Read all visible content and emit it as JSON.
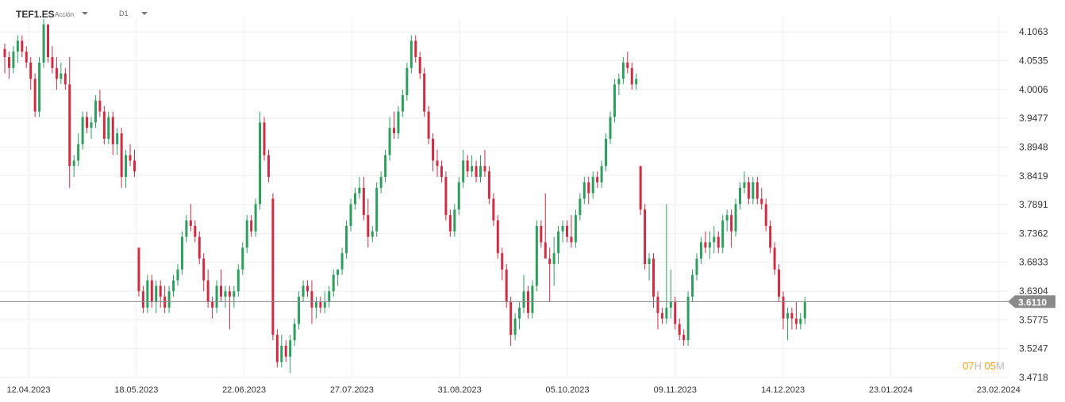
{
  "header": {
    "symbol": "TEF1.ES",
    "asset_type": "Acción",
    "timeframe": "D1"
  },
  "countdown": {
    "hours": "07",
    "hours_unit": "H",
    "minutes": "05",
    "minutes_unit": "M"
  },
  "colors": {
    "up": "#2e9e5f",
    "down": "#cf2d43",
    "grid": "#eeeeee",
    "price_line": "#8a8a8a",
    "price_label_bg": "#8a8a8a"
  },
  "chart_data": {
    "type": "candlestick",
    "symbol": "TEF1.ES",
    "timeframe": "D1",
    "ylim": [
      3.4718,
      4.1328
    ],
    "y_ticks": [
      "4.1063",
      "4.0535",
      "4.0006",
      "3.9477",
      "3.8948",
      "3.8419",
      "3.7891",
      "3.7362",
      "3.6833",
      "3.6304",
      "3.5775",
      "3.5247",
      "3.4718"
    ],
    "x_ticks": [
      "12.04.2023",
      "18.05.2023",
      "22.06.2023",
      "27.07.2023",
      "31.08.2023",
      "05.10.2023",
      "09.11.2023",
      "14.12.2023",
      "23.01.2024",
      "23.02.2024"
    ],
    "last_price": 3.611,
    "last_price_label": "3.6110",
    "candles_ohlc": [
      [
        4.075,
        4.085,
        4.03,
        4.06
      ],
      [
        4.06,
        4.07,
        4.02,
        4.04
      ],
      [
        4.04,
        4.08,
        4.03,
        4.07
      ],
      [
        4.07,
        4.1,
        4.05,
        4.09
      ],
      [
        4.09,
        4.1,
        4.06,
        4.07
      ],
      [
        4.07,
        4.08,
        4.04,
        4.05
      ],
      [
        4.05,
        4.06,
        4.0,
        4.02
      ],
      [
        4.02,
        4.03,
        3.95,
        3.96
      ],
      [
        3.96,
        4.06,
        3.95,
        4.05
      ],
      [
        4.05,
        4.13,
        4.04,
        4.12
      ],
      [
        4.12,
        4.12,
        4.05,
        4.06
      ],
      [
        4.06,
        4.08,
        4.03,
        4.04
      ],
      [
        4.04,
        4.06,
        4.0,
        4.02
      ],
      [
        4.02,
        4.05,
        4.01,
        4.03
      ],
      [
        4.03,
        4.04,
        4.0,
        4.01
      ],
      [
        4.01,
        4.06,
        3.82,
        3.86
      ],
      [
        3.86,
        3.88,
        3.84,
        3.87
      ],
      [
        3.87,
        3.92,
        3.86,
        3.9
      ],
      [
        3.9,
        3.96,
        3.89,
        3.95
      ],
      [
        3.95,
        3.96,
        3.92,
        3.93
      ],
      [
        3.93,
        3.95,
        3.91,
        3.94
      ],
      [
        3.94,
        3.99,
        3.93,
        3.98
      ],
      [
        3.98,
        4.0,
        3.95,
        3.96
      ],
      [
        3.96,
        3.97,
        3.9,
        3.91
      ],
      [
        3.91,
        3.96,
        3.9,
        3.95
      ],
      [
        3.95,
        3.96,
        3.88,
        3.9
      ],
      [
        3.9,
        3.93,
        3.88,
        3.92
      ],
      [
        3.92,
        3.93,
        3.82,
        3.84
      ],
      [
        3.84,
        3.89,
        3.82,
        3.88
      ],
      [
        3.88,
        3.9,
        3.86,
        3.87
      ],
      [
        3.87,
        3.89,
        3.84,
        3.85
      ],
      [
        3.71,
        3.71,
        3.62,
        3.63
      ],
      [
        3.63,
        3.64,
        3.59,
        3.6
      ],
      [
        3.6,
        3.66,
        3.59,
        3.65
      ],
      [
        3.65,
        3.66,
        3.6,
        3.61
      ],
      [
        3.61,
        3.65,
        3.59,
        3.64
      ],
      [
        3.64,
        3.65,
        3.6,
        3.62
      ],
      [
        3.62,
        3.64,
        3.59,
        3.6
      ],
      [
        3.6,
        3.64,
        3.59,
        3.63
      ],
      [
        3.63,
        3.66,
        3.62,
        3.65
      ],
      [
        3.65,
        3.68,
        3.64,
        3.67
      ],
      [
        3.67,
        3.74,
        3.66,
        3.73
      ],
      [
        3.73,
        3.77,
        3.72,
        3.76
      ],
      [
        3.76,
        3.79,
        3.74,
        3.75
      ],
      [
        3.75,
        3.76,
        3.72,
        3.73
      ],
      [
        3.73,
        3.74,
        3.68,
        3.69
      ],
      [
        3.69,
        3.7,
        3.63,
        3.65
      ],
      [
        3.65,
        3.67,
        3.6,
        3.61
      ],
      [
        3.61,
        3.62,
        3.58,
        3.6
      ],
      [
        3.6,
        3.65,
        3.59,
        3.64
      ],
      [
        3.64,
        3.67,
        3.61,
        3.62
      ],
      [
        3.62,
        3.64,
        3.6,
        3.63
      ],
      [
        3.63,
        3.64,
        3.56,
        3.62
      ],
      [
        3.62,
        3.64,
        3.6,
        3.63
      ],
      [
        3.63,
        3.68,
        3.62,
        3.67
      ],
      [
        3.67,
        3.72,
        3.66,
        3.71
      ],
      [
        3.71,
        3.77,
        3.7,
        3.76
      ],
      [
        3.76,
        3.77,
        3.73,
        3.74
      ],
      [
        3.74,
        3.8,
        3.73,
        3.79
      ],
      [
        3.79,
        3.96,
        3.78,
        3.94
      ],
      [
        3.94,
        3.95,
        3.87,
        3.88
      ],
      [
        3.88,
        3.89,
        3.83,
        3.84
      ],
      [
        3.8,
        3.81,
        3.54,
        3.55
      ],
      [
        3.55,
        3.56,
        3.49,
        3.5
      ],
      [
        3.5,
        3.55,
        3.49,
        3.53
      ],
      [
        3.53,
        3.54,
        3.5,
        3.51
      ],
      [
        3.51,
        3.55,
        3.48,
        3.54
      ],
      [
        3.54,
        3.58,
        3.53,
        3.57
      ],
      [
        3.57,
        3.63,
        3.56,
        3.62
      ],
      [
        3.62,
        3.65,
        3.61,
        3.64
      ],
      [
        3.64,
        3.65,
        3.62,
        3.63
      ],
      [
        3.63,
        3.65,
        3.57,
        3.6
      ],
      [
        3.6,
        3.62,
        3.58,
        3.61
      ],
      [
        3.61,
        3.62,
        3.59,
        3.6
      ],
      [
        3.6,
        3.63,
        3.59,
        3.61
      ],
      [
        3.61,
        3.64,
        3.6,
        3.63
      ],
      [
        3.63,
        3.67,
        3.62,
        3.66
      ],
      [
        3.66,
        3.67,
        3.64,
        3.67
      ],
      [
        3.67,
        3.71,
        3.66,
        3.7
      ],
      [
        3.7,
        3.76,
        3.69,
        3.75
      ],
      [
        3.75,
        3.8,
        3.74,
        3.79
      ],
      [
        3.79,
        3.82,
        3.78,
        3.81
      ],
      [
        3.81,
        3.84,
        3.8,
        3.82
      ],
      [
        3.82,
        3.84,
        3.76,
        3.77
      ],
      [
        3.77,
        3.8,
        3.71,
        3.73
      ],
      [
        3.73,
        3.75,
        3.72,
        3.74
      ],
      [
        3.74,
        3.83,
        3.73,
        3.82
      ],
      [
        3.82,
        3.85,
        3.81,
        3.84
      ],
      [
        3.84,
        3.89,
        3.83,
        3.88
      ],
      [
        3.88,
        3.95,
        3.87,
        3.93
      ],
      [
        3.93,
        3.96,
        3.91,
        3.92
      ],
      [
        3.92,
        3.97,
        3.91,
        3.96
      ],
      [
        3.96,
        4.0,
        3.95,
        3.99
      ],
      [
        3.99,
        4.05,
        3.98,
        4.04
      ],
      [
        4.04,
        4.1,
        4.03,
        4.09
      ],
      [
        4.09,
        4.1,
        4.05,
        4.06
      ],
      [
        4.06,
        4.07,
        4.02,
        4.03
      ],
      [
        4.03,
        4.04,
        3.95,
        3.96
      ],
      [
        3.96,
        3.97,
        3.9,
        3.91
      ],
      [
        3.91,
        3.92,
        3.85,
        3.87
      ],
      [
        3.87,
        3.89,
        3.84,
        3.86
      ],
      [
        3.86,
        3.87,
        3.83,
        3.84
      ],
      [
        3.84,
        3.85,
        3.76,
        3.77
      ],
      [
        3.77,
        3.78,
        3.73,
        3.74
      ],
      [
        3.74,
        3.79,
        3.73,
        3.78
      ],
      [
        3.78,
        3.84,
        3.77,
        3.83
      ],
      [
        3.83,
        3.89,
        3.82,
        3.87
      ],
      [
        3.87,
        3.88,
        3.84,
        3.85
      ],
      [
        3.85,
        3.88,
        3.84,
        3.86
      ],
      [
        3.86,
        3.87,
        3.83,
        3.84
      ],
      [
        3.84,
        3.88,
        3.83,
        3.86
      ],
      [
        3.86,
        3.89,
        3.84,
        3.85
      ],
      [
        3.85,
        3.86,
        3.79,
        3.8
      ],
      [
        3.8,
        3.81,
        3.75,
        3.76
      ],
      [
        3.76,
        3.77,
        3.69,
        3.7
      ],
      [
        3.7,
        3.71,
        3.65,
        3.67
      ],
      [
        3.67,
        3.68,
        3.6,
        3.61
      ],
      [
        3.61,
        3.62,
        3.53,
        3.55
      ],
      [
        3.55,
        3.59,
        3.54,
        3.58
      ],
      [
        3.58,
        3.61,
        3.56,
        3.6
      ],
      [
        3.6,
        3.66,
        3.59,
        3.63
      ],
      [
        3.63,
        3.64,
        3.58,
        3.59
      ],
      [
        3.59,
        3.65,
        3.58,
        3.64
      ],
      [
        3.64,
        3.76,
        3.63,
        3.75
      ],
      [
        3.75,
        3.76,
        3.71,
        3.72
      ],
      [
        3.72,
        3.81,
        3.71,
        3.69
      ],
      [
        3.69,
        3.71,
        3.61,
        3.68
      ],
      [
        3.68,
        3.73,
        3.64,
        3.7
      ],
      [
        3.7,
        3.75,
        3.68,
        3.74
      ],
      [
        3.74,
        3.76,
        3.72,
        3.75
      ],
      [
        3.75,
        3.76,
        3.72,
        3.73
      ],
      [
        3.73,
        3.77,
        3.71,
        3.72
      ],
      [
        3.72,
        3.78,
        3.71,
        3.77
      ],
      [
        3.77,
        3.81,
        3.76,
        3.8
      ],
      [
        3.8,
        3.84,
        3.79,
        3.83
      ],
      [
        3.83,
        3.84,
        3.79,
        3.81
      ],
      [
        3.81,
        3.85,
        3.8,
        3.84
      ],
      [
        3.84,
        3.85,
        3.82,
        3.83
      ],
      [
        3.83,
        3.87,
        3.82,
        3.86
      ],
      [
        3.86,
        3.92,
        3.85,
        3.91
      ],
      [
        3.91,
        3.96,
        3.9,
        3.95
      ],
      [
        3.95,
        4.02,
        3.94,
        4.01
      ],
      [
        4.01,
        4.03,
        3.99,
        4.02
      ],
      [
        4.02,
        4.06,
        4.01,
        4.05
      ],
      [
        4.05,
        4.07,
        4.03,
        4.04
      ],
      [
        4.04,
        4.05,
        4.0,
        4.01
      ],
      [
        4.01,
        4.03,
        4.0,
        4.02
      ],
      [
        3.86,
        3.86,
        3.77,
        3.78
      ],
      [
        3.78,
        3.79,
        3.67,
        3.68
      ],
      [
        3.68,
        3.7,
        3.65,
        3.69
      ],
      [
        3.69,
        3.7,
        3.6,
        3.62
      ],
      [
        3.62,
        3.63,
        3.56,
        3.59
      ],
      [
        3.59,
        3.6,
        3.57,
        3.58
      ],
      [
        3.58,
        3.79,
        3.57,
        3.6
      ],
      [
        3.6,
        3.67,
        3.58,
        3.61
      ],
      [
        3.61,
        3.62,
        3.56,
        3.57
      ],
      [
        3.57,
        3.58,
        3.54,
        3.55
      ],
      [
        3.55,
        3.56,
        3.53,
        3.54
      ],
      [
        3.54,
        3.63,
        3.53,
        3.62
      ],
      [
        3.62,
        3.67,
        3.61,
        3.66
      ],
      [
        3.66,
        3.7,
        3.65,
        3.69
      ],
      [
        3.69,
        3.73,
        3.68,
        3.72
      ],
      [
        3.72,
        3.74,
        3.7,
        3.71
      ],
      [
        3.71,
        3.74,
        3.69,
        3.72
      ],
      [
        3.72,
        3.75,
        3.7,
        3.73
      ],
      [
        3.73,
        3.74,
        3.7,
        3.71
      ],
      [
        3.71,
        3.77,
        3.7,
        3.76
      ],
      [
        3.76,
        3.78,
        3.74,
        3.77
      ],
      [
        3.77,
        3.78,
        3.71,
        3.74
      ],
      [
        3.74,
        3.8,
        3.73,
        3.79
      ],
      [
        3.79,
        3.83,
        3.78,
        3.82
      ],
      [
        3.82,
        3.85,
        3.81,
        3.83
      ],
      [
        3.83,
        3.84,
        3.79,
        3.8
      ],
      [
        3.8,
        3.84,
        3.79,
        3.83
      ],
      [
        3.83,
        3.84,
        3.79,
        3.8
      ],
      [
        3.8,
        3.82,
        3.78,
        3.79
      ],
      [
        3.79,
        3.8,
        3.74,
        3.75
      ],
      [
        3.75,
        3.76,
        3.7,
        3.71
      ],
      [
        3.71,
        3.72,
        3.66,
        3.67
      ],
      [
        3.67,
        3.68,
        3.61,
        3.62
      ],
      [
        3.62,
        3.63,
        3.56,
        3.58
      ],
      [
        3.58,
        3.6,
        3.54,
        3.59
      ],
      [
        3.59,
        3.6,
        3.56,
        3.58
      ],
      [
        3.58,
        3.61,
        3.56,
        3.57
      ],
      [
        3.57,
        3.59,
        3.56,
        3.58
      ],
      [
        3.58,
        3.62,
        3.57,
        3.61
      ]
    ]
  }
}
